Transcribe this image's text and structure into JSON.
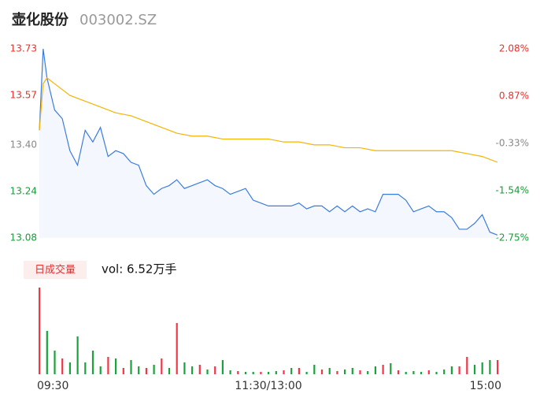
{
  "header": {
    "name": "壶化股份",
    "code": "003002.SZ"
  },
  "chart_data": [
    {
      "type": "line",
      "xlim": [
        0,
        240
      ],
      "xticks": [
        {
          "value": 0,
          "label": "09:30"
        },
        {
          "value": 120,
          "label": "11:30/13:00"
        },
        {
          "value": 240,
          "label": "15:00"
        }
      ],
      "ylim": [
        13.08,
        13.73
      ],
      "yticks": [
        13.73,
        13.57,
        {
          "value": 13.4,
          "label": "13.40"
        },
        13.24,
        13.08
      ],
      "ytick_colors": [
        "#e8312f",
        "#e8312f",
        "#888888",
        "#1a9a3a",
        "#1a9a3a"
      ],
      "y2lim": [
        -2.75,
        2.08
      ],
      "y2ticks": [
        {
          "value": 2.08,
          "label": "2.08%"
        },
        {
          "value": 0.87,
          "label": "0.87%"
        },
        {
          "value": -0.33,
          "label": "-0.33%"
        },
        {
          "value": -1.54,
          "label": "-1.54%"
        },
        {
          "value": -2.75,
          "label": "-2.75%"
        }
      ],
      "y2tick_colors": [
        "#e8312f",
        "#e8312f",
        "#888888",
        "#1a9a3a",
        "#1a9a3a"
      ],
      "series": [
        {
          "color": "#3b7ddd",
          "fill": "#f4f7fd",
          "x": [
            0,
            2,
            4,
            8,
            12,
            16,
            20,
            24,
            28,
            32,
            36,
            40,
            44,
            48,
            52,
            56,
            60,
            64,
            68,
            72,
            76,
            80,
            84,
            88,
            92,
            96,
            100,
            104,
            108,
            112,
            116,
            120,
            124,
            128,
            132,
            136,
            140,
            144,
            148,
            152,
            156,
            160,
            164,
            168,
            172,
            176,
            180,
            184,
            188,
            192,
            196,
            200,
            204,
            208,
            212,
            216,
            220,
            224,
            228,
            232,
            236,
            240
          ],
          "values": [
            13.45,
            13.73,
            13.63,
            13.52,
            13.49,
            13.38,
            13.33,
            13.45,
            13.41,
            13.46,
            13.36,
            13.38,
            13.37,
            13.34,
            13.33,
            13.26,
            13.23,
            13.25,
            13.26,
            13.28,
            13.25,
            13.26,
            13.27,
            13.28,
            13.26,
            13.25,
            13.23,
            13.24,
            13.25,
            13.21,
            13.2,
            13.19,
            13.19,
            13.19,
            13.19,
            13.2,
            13.18,
            13.19,
            13.19,
            13.17,
            13.19,
            13.17,
            13.19,
            13.17,
            13.18,
            13.17,
            13.23,
            13.23,
            13.23,
            13.21,
            13.17,
            13.18,
            13.19,
            13.17,
            13.17,
            13.15,
            13.11,
            13.11,
            13.13,
            13.16,
            13.1,
            13.09
          ]
        },
        {
          "color": "#f5b400",
          "x": [
            0,
            2,
            4,
            8,
            16,
            24,
            32,
            40,
            48,
            56,
            64,
            72,
            80,
            88,
            96,
            104,
            112,
            120,
            128,
            136,
            144,
            152,
            160,
            168,
            176,
            184,
            192,
            200,
            208,
            216,
            224,
            232,
            240
          ],
          "values": [
            13.45,
            13.61,
            13.63,
            13.61,
            13.57,
            13.55,
            13.53,
            13.51,
            13.5,
            13.48,
            13.46,
            13.44,
            13.43,
            13.43,
            13.42,
            13.42,
            13.42,
            13.42,
            13.41,
            13.41,
            13.4,
            13.4,
            13.39,
            13.39,
            13.38,
            13.38,
            13.38,
            13.38,
            13.38,
            13.38,
            13.37,
            13.36,
            13.34
          ]
        }
      ]
    },
    {
      "type": "bar",
      "button": "日成交量",
      "label": "vol: 6.52万手",
      "x": [
        0,
        4,
        8,
        12,
        16,
        20,
        24,
        28,
        32,
        36,
        40,
        44,
        48,
        52,
        56,
        60,
        64,
        68,
        72,
        76,
        80,
        84,
        88,
        92,
        96,
        100,
        104,
        108,
        112,
        116,
        120,
        124,
        128,
        132,
        136,
        140,
        144,
        148,
        152,
        156,
        160,
        164,
        168,
        172,
        176,
        180,
        184,
        188,
        192,
        196,
        200,
        204,
        208,
        212,
        216,
        220,
        224,
        228,
        232,
        236,
        240
      ],
      "values": [
        2970,
        1485,
        810,
        540,
        405,
        1296,
        405,
        810,
        270,
        594,
        540,
        216,
        486,
        270,
        216,
        324,
        540,
        216,
        1755,
        405,
        270,
        324,
        162,
        270,
        486,
        135,
        108,
        81,
        81,
        81,
        81,
        108,
        135,
        216,
        216,
        81,
        324,
        162,
        216,
        108,
        162,
        216,
        135,
        108,
        270,
        324,
        378,
        135,
        81,
        108,
        81,
        135,
        81,
        162,
        270,
        270,
        594,
        324,
        405,
        486,
        486
      ],
      "colors": [
        "#f23645",
        "#1aa33a",
        "#1aa33a",
        "#f23645",
        "#1aa33a",
        "#1aa33a",
        "#1aa33a",
        "#1aa33a",
        "#1aa33a",
        "#f23645",
        "#1aa33a",
        "#f23645",
        "#1aa33a",
        "#1aa33a",
        "#f23645",
        "#1aa33a",
        "#f23645",
        "#1aa33a",
        "#f23645",
        "#1aa33a",
        "#1aa33a",
        "#f23645",
        "#1aa33a",
        "#f23645",
        "#1aa33a",
        "#1aa33a",
        "#f23645",
        "#1aa33a",
        "#1aa33a",
        "#f23645",
        "#1aa33a",
        "#1aa33a",
        "#f23645",
        "#1aa33a",
        "#f23645",
        "#1aa33a",
        "#1aa33a",
        "#f23645",
        "#1aa33a",
        "#f23645",
        "#1aa33a",
        "#1aa33a",
        "#f23645",
        "#1aa33a",
        "#1aa33a",
        "#f23645",
        "#1aa33a",
        "#f23645",
        "#1aa33a",
        "#1aa33a",
        "#1aa33a",
        "#f23645",
        "#1aa33a",
        "#1aa33a",
        "#1aa33a",
        "#f23645",
        "#f23645",
        "#1aa33a",
        "#1aa33a",
        "#1aa33a",
        "#f23645"
      ]
    }
  ]
}
